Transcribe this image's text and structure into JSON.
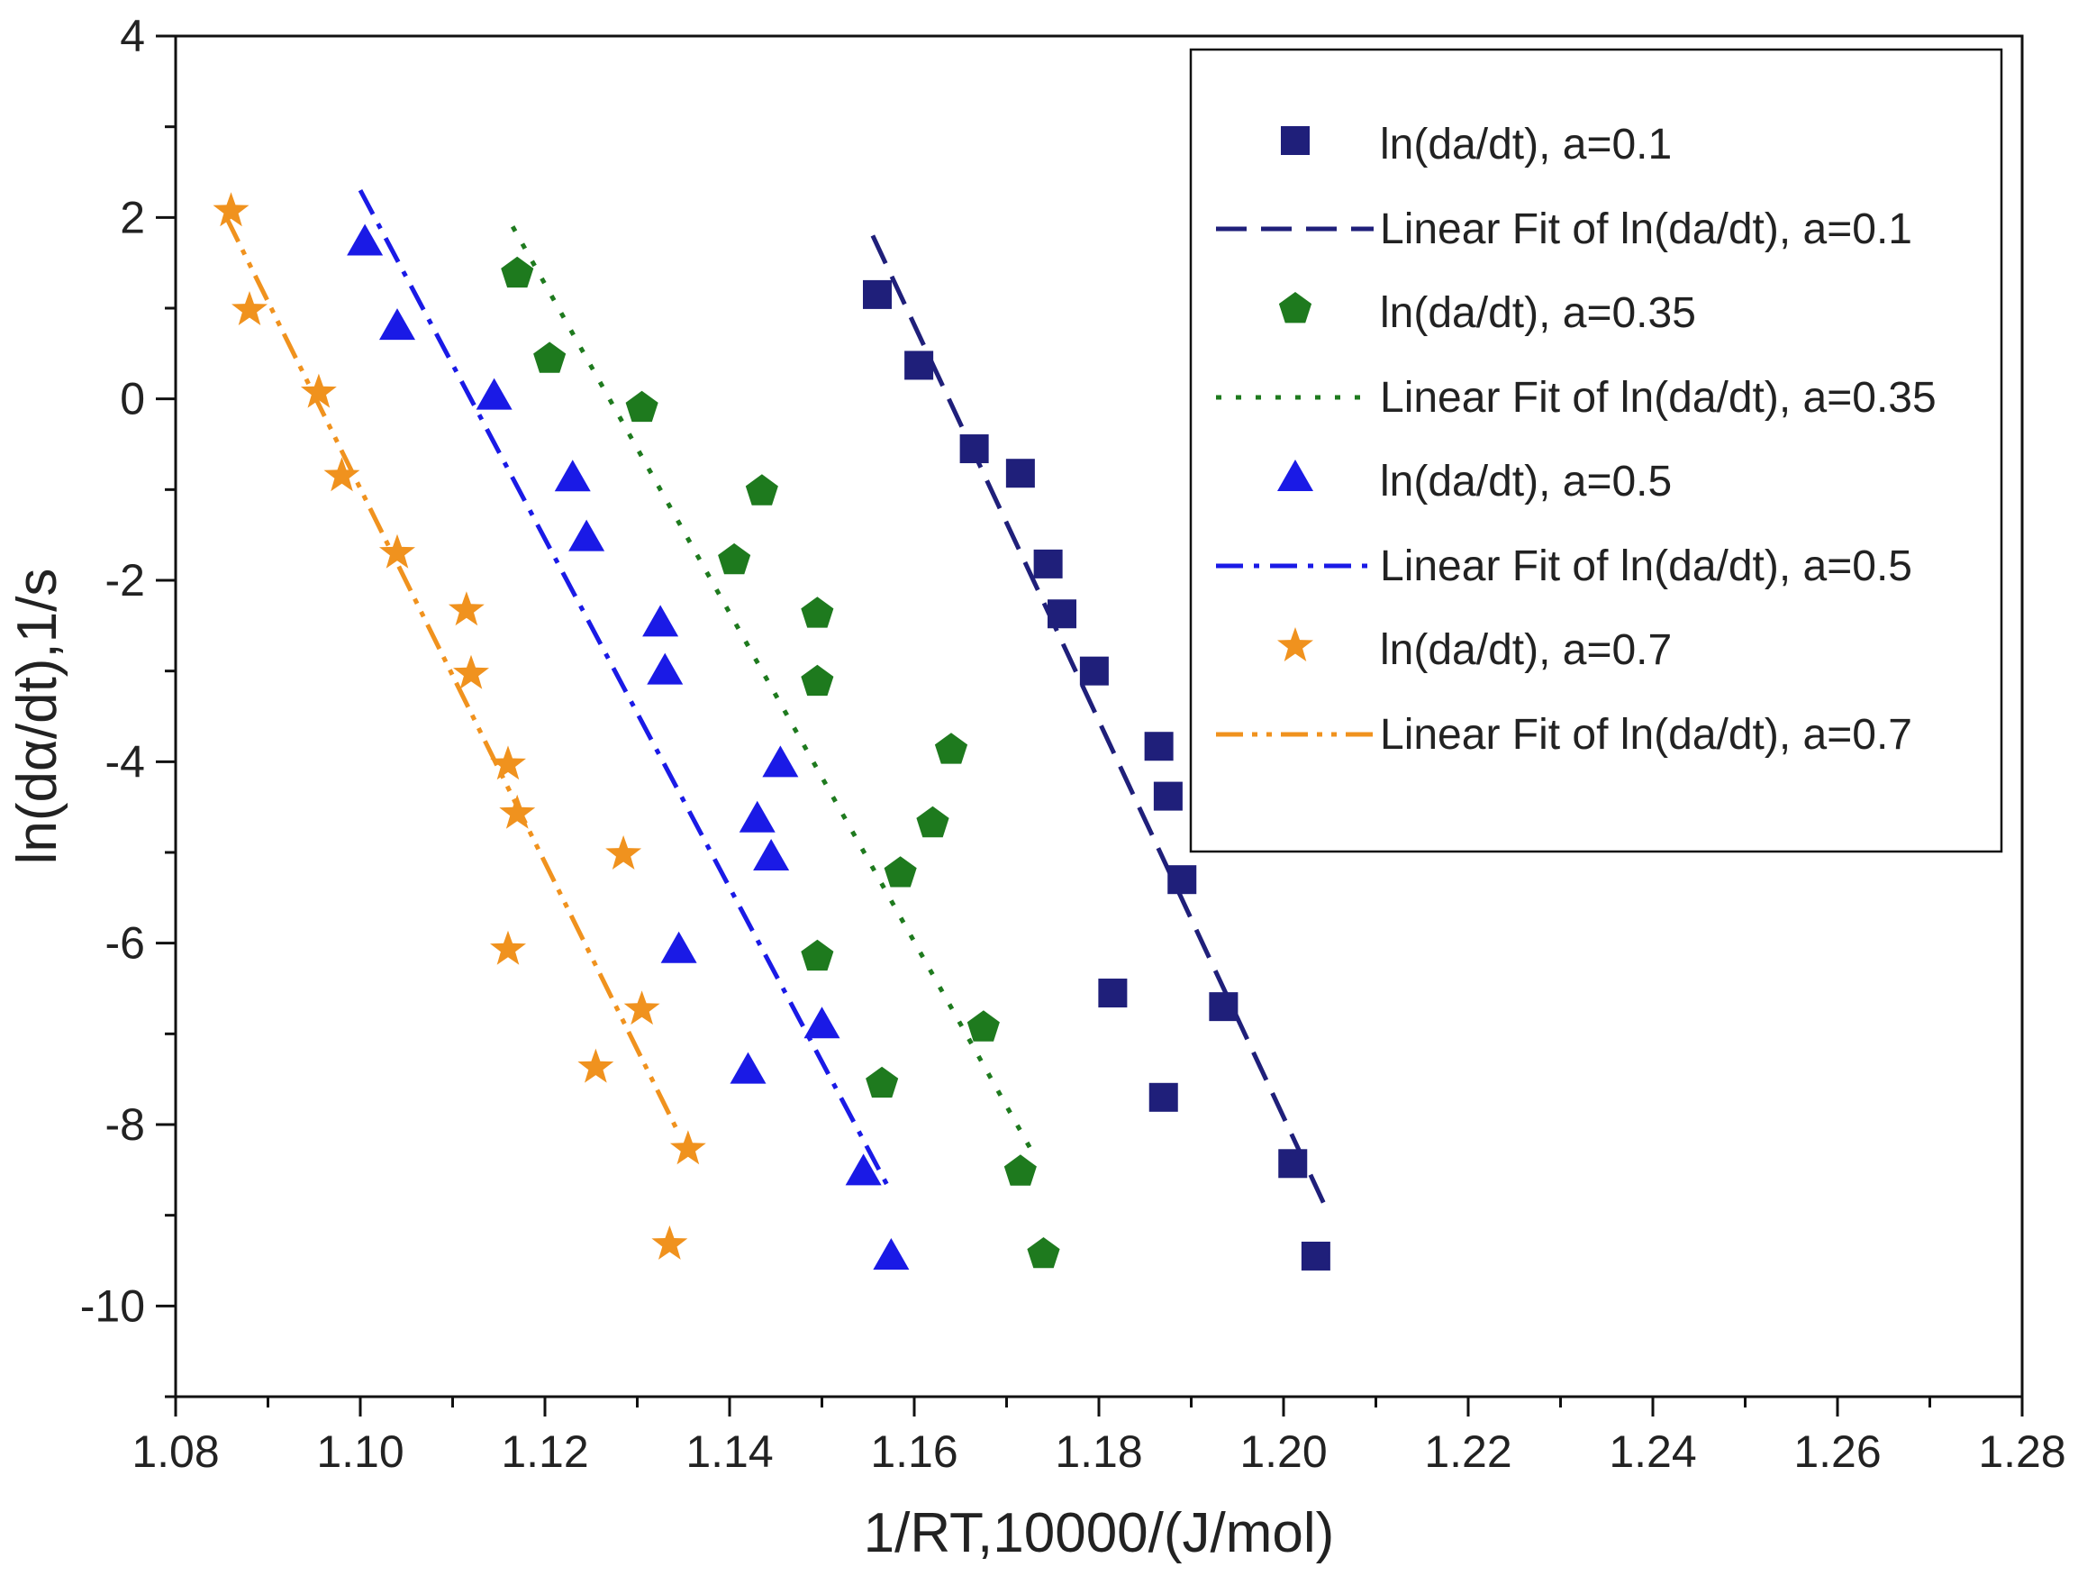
{
  "chart_data": {
    "type": "scatter",
    "title": "",
    "xlabel": "1/RT,10000/(J/mol)",
    "ylabel": {
      "prefix": "ln(d",
      "greek": "α",
      "suffix": "/dt),1/s"
    },
    "xlim": [
      1.08,
      1.28
    ],
    "ylim": [
      -11,
      4
    ],
    "x_ticks": [
      "1.08",
      "1.10",
      "1.12",
      "1.14",
      "1.16",
      "1.18",
      "1.20",
      "1.22",
      "1.24",
      "1.26",
      "1.28"
    ],
    "y_ticks": [
      "4",
      "2",
      "0",
      "-2",
      "-4",
      "-6",
      "-8",
      "-10"
    ],
    "legend_position": "top-right",
    "series": [
      {
        "name": "ln(da/dt), a=0.1",
        "fit_name": "Linear Fit of ln(da/dt), a=0.1",
        "marker": "square",
        "color": "#1f1f7a",
        "fit_style": "dash",
        "points": [
          [
            1.156,
            1.15
          ],
          [
            1.1605,
            0.37
          ],
          [
            1.1665,
            -0.55
          ],
          [
            1.1715,
            -0.82
          ],
          [
            1.1745,
            -1.82
          ],
          [
            1.176,
            -2.37
          ],
          [
            1.1795,
            -3.0
          ],
          [
            1.1865,
            -3.83
          ],
          [
            1.1875,
            -4.38
          ],
          [
            1.189,
            -5.3
          ],
          [
            1.1815,
            -6.55
          ],
          [
            1.1935,
            -6.7
          ],
          [
            1.187,
            -7.7
          ],
          [
            1.201,
            -8.43
          ],
          [
            1.2035,
            -9.45
          ]
        ],
        "fit": [
          [
            1.1555,
            1.8
          ],
          [
            1.2045,
            -8.9
          ]
        ]
      },
      {
        "name": "ln(da/dt), a=0.35",
        "fit_name": "Linear Fit of ln(da/dt), a=0.35",
        "marker": "pentagon",
        "color": "#1e7a1e",
        "fit_style": "dot",
        "points": [
          [
            1.117,
            1.38
          ],
          [
            1.1205,
            0.44
          ],
          [
            1.1305,
            -0.1
          ],
          [
            1.1435,
            -1.02
          ],
          [
            1.1405,
            -1.78
          ],
          [
            1.1495,
            -2.37
          ],
          [
            1.1495,
            -3.12
          ],
          [
            1.164,
            -3.87
          ],
          [
            1.162,
            -4.68
          ],
          [
            1.1585,
            -5.23
          ],
          [
            1.1495,
            -6.15
          ],
          [
            1.1675,
            -6.93
          ],
          [
            1.1565,
            -7.55
          ],
          [
            1.1715,
            -8.52
          ],
          [
            1.174,
            -9.43
          ]
        ],
        "fit": [
          [
            1.1165,
            1.9
          ],
          [
            1.1725,
            -8.25
          ]
        ]
      },
      {
        "name": "ln(da/dt), a=0.5",
        "fit_name": "Linear Fit of ln(da/dt), a=0.5",
        "marker": "triangle",
        "color": "#1a1ae6",
        "fit_style": "dashdot",
        "points": [
          [
            1.1005,
            1.73
          ],
          [
            1.104,
            0.8
          ],
          [
            1.1145,
            0.03
          ],
          [
            1.123,
            -0.87
          ],
          [
            1.1245,
            -1.53
          ],
          [
            1.1325,
            -2.47
          ],
          [
            1.133,
            -3.0
          ],
          [
            1.1455,
            -4.02
          ],
          [
            1.143,
            -4.63
          ],
          [
            1.1445,
            -5.05
          ],
          [
            1.1345,
            -6.07
          ],
          [
            1.15,
            -6.9
          ],
          [
            1.142,
            -7.4
          ],
          [
            1.1545,
            -8.52
          ],
          [
            1.1575,
            -9.45
          ]
        ],
        "fit": [
          [
            1.1,
            2.3
          ],
          [
            1.1575,
            -8.75
          ]
        ]
      },
      {
        "name": "ln(da/dt), a=0.7",
        "fit_name": "Linear Fit of ln(da/dt), a=0.7",
        "marker": "star",
        "color": "#f0921e",
        "fit_style": "dashdotdot",
        "points": [
          [
            1.086,
            2.07
          ],
          [
            1.088,
            0.98
          ],
          [
            1.0955,
            0.07
          ],
          [
            1.098,
            -0.85
          ],
          [
            1.104,
            -1.7
          ],
          [
            1.1115,
            -2.33
          ],
          [
            1.112,
            -3.03
          ],
          [
            1.116,
            -4.03
          ],
          [
            1.117,
            -4.57
          ],
          [
            1.1285,
            -5.02
          ],
          [
            1.116,
            -6.07
          ],
          [
            1.1305,
            -6.73
          ],
          [
            1.1255,
            -7.37
          ],
          [
            1.1355,
            -8.27
          ],
          [
            1.1335,
            -9.32
          ]
        ],
        "fit": [
          [
            1.0855,
            2.0
          ],
          [
            1.1345,
            -8.1
          ]
        ]
      }
    ]
  }
}
